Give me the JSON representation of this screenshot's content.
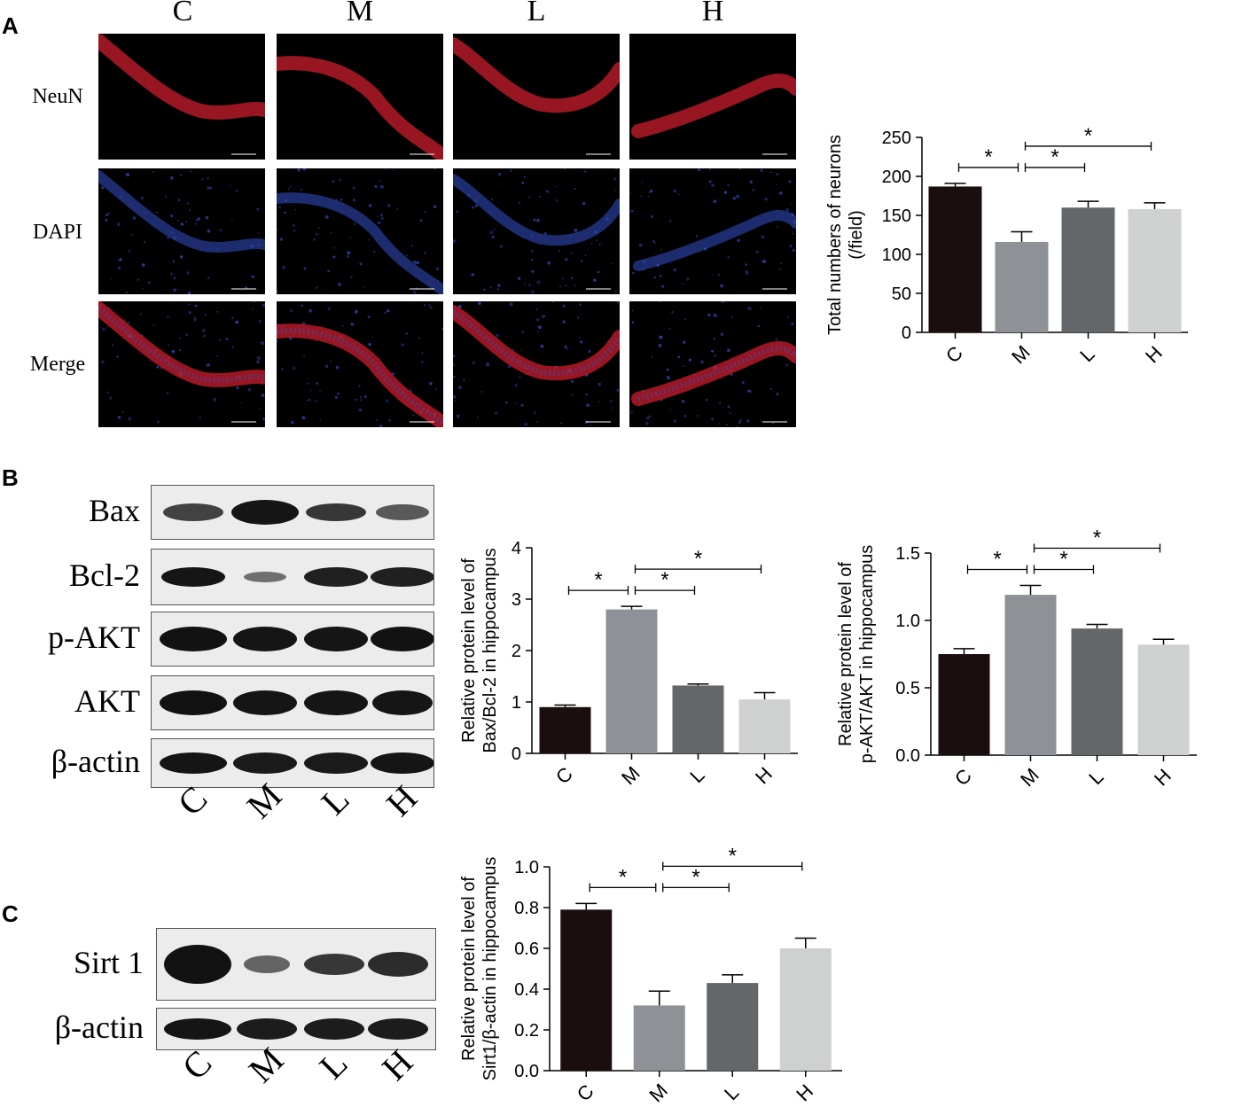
{
  "panel_labels": {
    "a": "A",
    "b": "B",
    "c": "C"
  },
  "panel_a": {
    "columns": [
      "C",
      "M",
      "L",
      "H"
    ],
    "rows": [
      "NeuN",
      "DAPI",
      "Merge"
    ],
    "colors": {
      "neun": "#d8202f",
      "dapi": "#3350c8"
    }
  },
  "panel_b": {
    "blot_rows": [
      "Bax",
      "Bcl-2",
      "p-AKT",
      "AKT",
      "β-actin"
    ],
    "lanes": [
      "C",
      "M",
      "L",
      "H"
    ]
  },
  "panel_c": {
    "blot_rows": [
      "Sirt 1",
      "β-actin"
    ],
    "lanes": [
      "C",
      "M",
      "L",
      "H"
    ]
  },
  "colors": {
    "C": "#1b0e0e",
    "M": "#8e9296",
    "L": "#63676a",
    "H": "#cfd1d1"
  },
  "chart_data": [
    {
      "type": "bar",
      "categories": [
        "C",
        "M",
        "L",
        "H"
      ],
      "values": [
        187,
        116,
        160,
        158
      ],
      "errors": [
        4,
        13,
        8,
        8
      ],
      "ylabel": "Total numbers of neurons\n(/field)",
      "ylim": [
        0,
        250
      ],
      "yticks": [
        "0",
        "50",
        "100",
        "150",
        "200",
        "250"
      ],
      "significance": [
        {
          "from": "C",
          "to": "M",
          "label": "*"
        },
        {
          "from": "M",
          "to": "L",
          "label": "*"
        },
        {
          "from": "M",
          "to": "H",
          "label": "*"
        }
      ]
    },
    {
      "type": "bar",
      "categories": [
        "C",
        "M",
        "L",
        "H"
      ],
      "values": [
        0.9,
        2.8,
        1.32,
        1.05
      ],
      "errors": [
        0.04,
        0.06,
        0.03,
        0.13
      ],
      "ylabel": "Relative protein level of\nBax/Bcl-2 in hippocampus",
      "ylim": [
        0,
        4
      ],
      "yticks": [
        "0",
        "1",
        "2",
        "3",
        "4"
      ],
      "significance": [
        {
          "from": "C",
          "to": "M",
          "label": "*"
        },
        {
          "from": "M",
          "to": "L",
          "label": "*"
        },
        {
          "from": "M",
          "to": "H",
          "label": "*"
        }
      ]
    },
    {
      "type": "bar",
      "categories": [
        "C",
        "M",
        "L",
        "H"
      ],
      "values": [
        0.75,
        1.19,
        0.94,
        0.82
      ],
      "errors": [
        0.04,
        0.07,
        0.03,
        0.04
      ],
      "ylabel": "Relative protein level of\np-AKT/AKT in hippocampus",
      "ylim": [
        0,
        1.5
      ],
      "yticks": [
        "0.0",
        "0.5",
        "1.0",
        "1.5"
      ],
      "significance": [
        {
          "from": "C",
          "to": "M",
          "label": "*"
        },
        {
          "from": "M",
          "to": "L",
          "label": "*"
        },
        {
          "from": "M",
          "to": "H",
          "label": "*"
        }
      ]
    },
    {
      "type": "bar",
      "categories": [
        "C",
        "M",
        "L",
        "H"
      ],
      "values": [
        0.79,
        0.32,
        0.43,
        0.6
      ],
      "errors": [
        0.03,
        0.07,
        0.04,
        0.05
      ],
      "ylabel": "Relative protein level of\nSirt1/β-actin in hippocampus",
      "ylim": [
        0,
        1.0
      ],
      "yticks": [
        "0.0",
        "0.2",
        "0.4",
        "0.6",
        "0.8",
        "1.0"
      ],
      "significance": [
        {
          "from": "C",
          "to": "M",
          "label": "*"
        },
        {
          "from": "M",
          "to": "L",
          "label": "*"
        },
        {
          "from": "M",
          "to": "H",
          "label": "*"
        }
      ]
    }
  ]
}
